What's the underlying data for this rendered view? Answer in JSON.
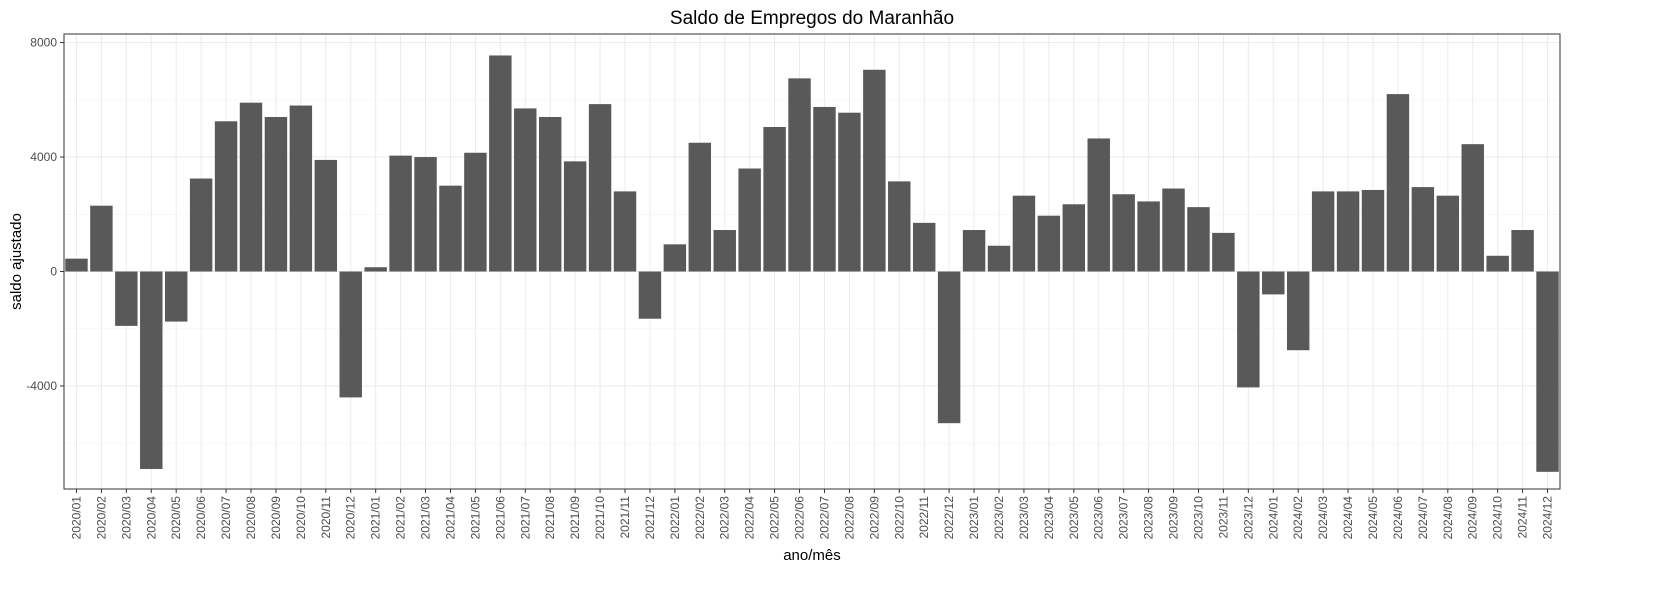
{
  "chart_data": {
    "type": "bar",
    "title": "Saldo de Empregos do Maranhão",
    "xlabel": "ano/mês",
    "ylabel": "saldo ajustado",
    "bar_color": "#595959",
    "ylim": [
      -7600,
      8300
    ],
    "yticks": [
      -4000,
      0,
      4000,
      8000
    ],
    "yticks_labels": [
      "-4000",
      "0",
      "4000",
      "8000"
    ],
    "grid": true,
    "categories": [
      "2020/01",
      "2020/02",
      "2020/03",
      "2020/04",
      "2020/05",
      "2020/06",
      "2020/07",
      "2020/08",
      "2020/09",
      "2020/10",
      "2020/11",
      "2020/12",
      "2021/01",
      "2021/02",
      "2021/03",
      "2021/04",
      "2021/05",
      "2021/06",
      "2021/07",
      "2021/08",
      "2021/09",
      "2021/10",
      "2021/11",
      "2021/12",
      "2022/01",
      "2022/02",
      "2022/03",
      "2022/04",
      "2022/05",
      "2022/06",
      "2022/07",
      "2022/08",
      "2022/09",
      "2022/10",
      "2022/11",
      "2022/12",
      "2023/01",
      "2023/02",
      "2023/03",
      "2023/04",
      "2023/05",
      "2023/06",
      "2023/07",
      "2023/08",
      "2023/09",
      "2023/10",
      "2023/11",
      "2023/12",
      "2024/01",
      "2024/02",
      "2024/03",
      "2024/04",
      "2024/05",
      "2024/06",
      "2024/07",
      "2024/08",
      "2024/09",
      "2024/10",
      "2024/11",
      "2024/12"
    ],
    "values": [
      450,
      2300,
      -1900,
      -6900,
      -1750,
      3250,
      5250,
      5900,
      5400,
      5800,
      3900,
      -4400,
      150,
      4050,
      4000,
      3000,
      4150,
      7550,
      5700,
      5400,
      3850,
      5850,
      2800,
      -1650,
      950,
      4500,
      1450,
      3600,
      5050,
      6750,
      5750,
      5550,
      7050,
      3150,
      1700,
      -5300,
      1450,
      900,
      2650,
      1950,
      2350,
      4650,
      2700,
      2450,
      2900,
      2250,
      1350,
      -4050,
      -800,
      -2750,
      2800,
      2800,
      2850,
      6200,
      2950,
      2650,
      4450,
      550,
      1450,
      -7000
    ]
  }
}
